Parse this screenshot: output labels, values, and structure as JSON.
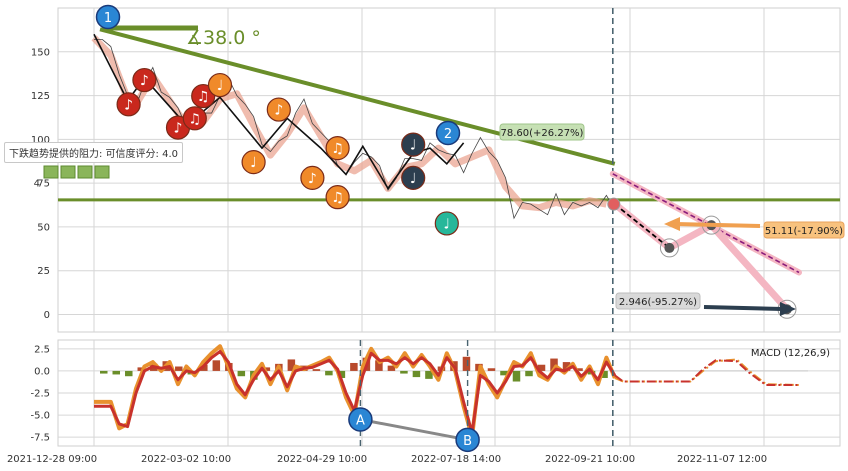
{
  "chart_data": [
    {
      "type": "line",
      "panel": "price",
      "ylim": [
        -10,
        175
      ],
      "y_ticks": [
        0,
        25,
        50,
        75,
        100,
        125,
        150
      ],
      "x_tick_labels": [
        "2021-12-28 09:00",
        "2022-03-02 10:00",
        "2022-04-29 10:00",
        "2022-07-18 14:00",
        "2022-09-21 10:00",
        "2022-11-07 12:00"
      ],
      "price_series": [
        [
          0,
          160
        ],
        [
          2,
          157
        ],
        [
          4,
          150
        ],
        [
          6,
          140
        ],
        [
          8,
          125
        ],
        [
          9,
          118
        ],
        [
          10,
          122
        ],
        [
          12,
          132
        ],
        [
          14,
          138
        ],
        [
          16,
          130
        ],
        [
          18,
          124
        ],
        [
          20,
          115
        ],
        [
          22,
          110
        ],
        [
          24,
          108
        ],
        [
          26,
          112
        ],
        [
          28,
          118
        ],
        [
          30,
          125
        ],
        [
          32,
          132
        ],
        [
          34,
          128
        ],
        [
          36,
          120
        ],
        [
          38,
          110
        ],
        [
          40,
          100
        ],
        [
          42,
          93
        ],
        [
          44,
          96
        ],
        [
          46,
          105
        ],
        [
          48,
          115
        ],
        [
          50,
          120
        ],
        [
          52,
          112
        ],
        [
          54,
          104
        ],
        [
          56,
          96
        ],
        [
          58,
          88
        ],
        [
          60,
          80
        ],
        [
          62,
          84
        ],
        [
          64,
          95
        ],
        [
          66,
          90
        ],
        [
          68,
          82
        ],
        [
          70,
          74
        ],
        [
          72,
          78
        ],
        [
          74,
          86
        ],
        [
          76,
          92
        ],
        [
          78,
          88
        ],
        [
          80,
          95
        ],
        [
          82,
          97
        ],
        [
          84,
          92
        ],
        [
          86,
          88
        ],
        [
          88,
          84
        ],
        [
          90,
          92
        ],
        [
          92,
          98
        ],
        [
          94,
          96
        ],
        [
          96,
          88
        ],
        [
          98,
          75
        ],
        [
          100,
          58
        ],
        [
          102,
          64
        ],
        [
          104,
          60
        ],
        [
          106,
          63
        ],
        [
          108,
          57
        ],
        [
          110,
          66
        ],
        [
          112,
          60
        ],
        [
          114,
          64
        ],
        [
          116,
          59
        ],
        [
          118,
          67
        ],
        [
          120,
          61
        ],
        [
          122,
          65
        ],
        [
          124,
          63
        ]
      ],
      "forecast_points": [
        [
          124,
          63
        ],
        [
          137,
          38
        ],
        [
          147,
          51
        ],
        [
          165,
          3
        ]
      ],
      "channel_upper": [
        [
          124,
          78.6
        ],
        [
          165,
          24
        ]
      ],
      "resistance_line": [
        [
          0,
          160
        ],
        [
          124,
          78.6
        ]
      ],
      "support_level": 78.6,
      "divider_x": 124,
      "angle_label": "∡38.0 °",
      "resistance_note": "下跌趋势提供的阻力: 可信度评分: 4.0",
      "label_upper": "78.60(+26.27%)",
      "label_mid": "51.11(-17.90%)",
      "label_low": "2.946(-95.27%)",
      "wave_labels": [
        "1",
        "2"
      ],
      "partial_tick": "4"
    },
    {
      "type": "line",
      "panel": "macd",
      "title": "MACD (12,26,9)",
      "ylim": [
        -8.5,
        3.5
      ],
      "y_ticks": [
        2.5,
        0.0,
        -2.5,
        -5.0,
        -7.5
      ],
      "y_tick_labels": [
        "2.5",
        "0.0",
        "-2.5",
        "-5.0",
        "-7.5"
      ],
      "macd": [
        [
          0,
          -3.5
        ],
        [
          4,
          -3.5
        ],
        [
          6,
          -6.5
        ],
        [
          8,
          -6
        ],
        [
          10,
          -2
        ],
        [
          12,
          0.5
        ],
        [
          14,
          1
        ],
        [
          16,
          0
        ],
        [
          18,
          1
        ],
        [
          20,
          -1.5
        ],
        [
          22,
          0.5
        ],
        [
          24,
          -0.5
        ],
        [
          26,
          1
        ],
        [
          28,
          2
        ],
        [
          30,
          2.8
        ],
        [
          32,
          0.5
        ],
        [
          34,
          -2
        ],
        [
          36,
          -3
        ],
        [
          38,
          -0.5
        ],
        [
          40,
          0.8
        ],
        [
          42,
          -1.5
        ],
        [
          44,
          0.5
        ],
        [
          46,
          -2.2
        ],
        [
          48,
          0.5
        ],
        [
          50,
          0.2
        ],
        [
          52,
          0.6
        ],
        [
          54,
          1
        ],
        [
          56,
          1.5
        ],
        [
          58,
          0
        ],
        [
          60,
          -3
        ],
        [
          62,
          -5
        ],
        [
          64,
          0.5
        ],
        [
          66,
          2.5
        ],
        [
          68,
          1
        ],
        [
          70,
          1.5
        ],
        [
          72,
          0.5
        ],
        [
          74,
          2
        ],
        [
          76,
          0.5
        ],
        [
          78,
          1.8
        ],
        [
          80,
          0.5
        ],
        [
          82,
          -1
        ],
        [
          84,
          2
        ],
        [
          86,
          0
        ],
        [
          88,
          -4
        ],
        [
          90,
          -7.5
        ],
        [
          92,
          0.5
        ],
        [
          94,
          -1.5
        ],
        [
          96,
          -3
        ],
        [
          98,
          -1
        ],
        [
          100,
          1
        ],
        [
          102,
          0.5
        ],
        [
          104,
          2
        ],
        [
          106,
          -0.5
        ],
        [
          108,
          -1
        ],
        [
          110,
          0.5
        ],
        [
          112,
          -0.2
        ],
        [
          114,
          0.8
        ],
        [
          116,
          -1
        ],
        [
          118,
          0.5
        ],
        [
          120,
          -1.5
        ],
        [
          122,
          1.5
        ],
        [
          124,
          -0.8
        ],
        [
          126,
          -1.2
        ],
        [
          130,
          -1.2
        ],
        [
          135,
          -1.2
        ],
        [
          142,
          -1.2
        ],
        [
          145,
          0
        ],
        [
          148,
          1.1
        ],
        [
          153,
          1.3
        ],
        [
          156,
          0
        ],
        [
          160,
          -1.5
        ],
        [
          168,
          -1.6
        ]
      ],
      "signal": [
        [
          0,
          -4
        ],
        [
          4,
          -4
        ],
        [
          6,
          -6
        ],
        [
          8,
          -6.3
        ],
        [
          10,
          -2.5
        ],
        [
          12,
          0
        ],
        [
          14,
          0.5
        ],
        [
          16,
          0.3
        ],
        [
          18,
          0.5
        ],
        [
          20,
          -1
        ],
        [
          22,
          0
        ],
        [
          24,
          -0.2
        ],
        [
          26,
          0.5
        ],
        [
          28,
          1.5
        ],
        [
          30,
          2.2
        ],
        [
          32,
          1
        ],
        [
          34,
          -1.5
        ],
        [
          36,
          -2.7
        ],
        [
          38,
          -1
        ],
        [
          40,
          0.3
        ],
        [
          42,
          -1
        ],
        [
          44,
          0
        ],
        [
          46,
          -1.8
        ],
        [
          48,
          0
        ],
        [
          50,
          0.3
        ],
        [
          52,
          0.4
        ],
        [
          54,
          0.8
        ],
        [
          56,
          1.2
        ],
        [
          58,
          0.2
        ],
        [
          60,
          -2.5
        ],
        [
          62,
          -4.5
        ],
        [
          64,
          -0.5
        ],
        [
          66,
          2
        ],
        [
          68,
          1.2
        ],
        [
          70,
          1.2
        ],
        [
          72,
          0.8
        ],
        [
          74,
          1.5
        ],
        [
          76,
          0.8
        ],
        [
          78,
          1.5
        ],
        [
          80,
          0.8
        ],
        [
          82,
          -0.5
        ],
        [
          84,
          1.5
        ],
        [
          86,
          0.3
        ],
        [
          88,
          -3.5
        ],
        [
          90,
          -7
        ],
        [
          92,
          -0.5
        ],
        [
          94,
          -1.2
        ],
        [
          96,
          -2.5
        ],
        [
          98,
          -1.2
        ],
        [
          100,
          0.5
        ],
        [
          102,
          0.6
        ],
        [
          104,
          1.5
        ],
        [
          106,
          0
        ],
        [
          108,
          -0.8
        ],
        [
          110,
          0.2
        ],
        [
          112,
          0
        ],
        [
          114,
          0.5
        ],
        [
          116,
          -0.6
        ],
        [
          118,
          0.2
        ],
        [
          120,
          -1
        ],
        [
          122,
          1
        ],
        [
          124,
          -0.5
        ],
        [
          126,
          -1.2
        ],
        [
          130,
          -1.2
        ],
        [
          135,
          -1.2
        ],
        [
          142,
          -1.2
        ],
        [
          145,
          0.2
        ],
        [
          148,
          1.2
        ],
        [
          153,
          1.1
        ],
        [
          156,
          -0.2
        ],
        [
          160,
          -1.6
        ],
        [
          168,
          -1.6
        ]
      ],
      "histogram_samples": [
        -0.3,
        -0.4,
        -0.6,
        0.4,
        0.8,
        1.1,
        0.5,
        -0.4,
        0.7,
        1.2,
        0.9,
        -0.6,
        -1.0,
        0.4,
        0.8,
        1.3,
        0.6,
        0.2,
        -0.5,
        -0.8,
        0.9,
        1.5,
        1.2,
        0.6,
        -0.3,
        -0.7,
        -0.9,
        0.5,
        1.1,
        1.6,
        0.8,
        0.3,
        -0.5,
        -1.2,
        -0.6,
        0.7,
        1.4,
        1.0,
        0.3,
        -0.4,
        -0.8
      ],
      "point_labels": [
        "A",
        "B"
      ]
    }
  ],
  "colors": {
    "resistance": "#6a8e2a",
    "macd_line": "#e8912e",
    "signal_line": "#c8322c",
    "hist_pos": "#b84a2c",
    "hist_neg": "#6a8e2a",
    "forecast_dash": "#000000",
    "channel_pink": "#f4b6c2",
    "note_red": "#c9281d",
    "note_orange": "#f08a2a",
    "note_dark": "#2c3e4f",
    "note_teal": "#27b79a",
    "badge_blue": "#2a86d4"
  }
}
